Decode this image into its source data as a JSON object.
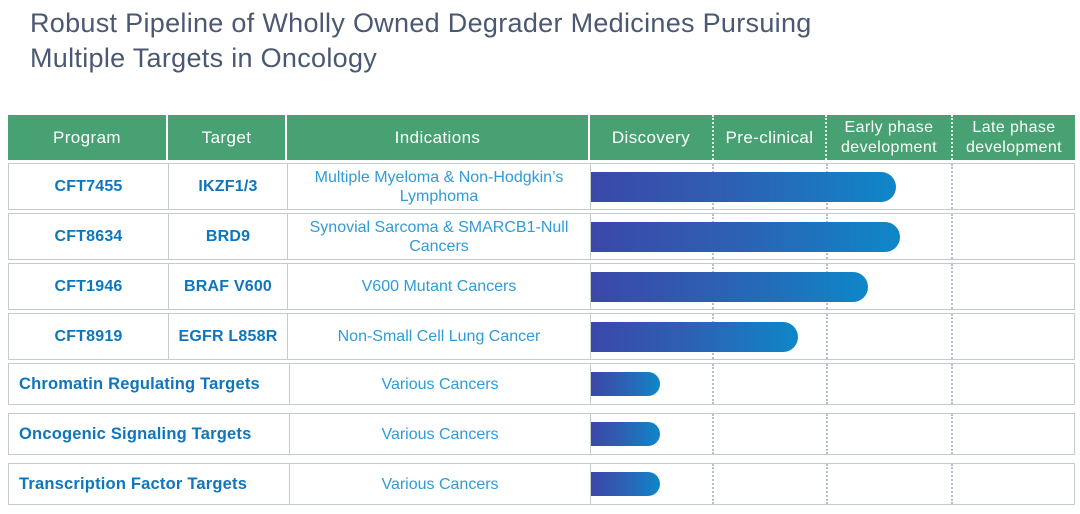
{
  "slide_title": "Robust Pipeline of Wholly Owned Degrader Medicines Pursuing Multiple Targets in Oncology",
  "table": {
    "column_headers": [
      "Program",
      "Target",
      "Indications",
      "Discovery",
      "Pre-clinical",
      "Early phase development",
      "Late phase development"
    ],
    "program_rows": [
      {
        "program": "CFT7455",
        "target": "IKZF1/3",
        "indication": "Multiple Myeloma & Non-Hodgkin’s Lymphoma",
        "bar_style": "width:305px"
      },
      {
        "program": "CFT8634",
        "target": "BRD9",
        "indication": "Synovial Sarcoma & SMARCB1-Null Cancers",
        "bar_style": "width:309px"
      },
      {
        "program": "CFT1946",
        "target": "BRAF V600",
        "indication": "V600 Mutant Cancers",
        "bar_style": "width:277px"
      },
      {
        "program": "CFT8919",
        "target": "EGFR L858R",
        "indication": "Non-Small Cell Lung Cancer",
        "bar_style": "width:207px"
      }
    ],
    "category_rows": [
      {
        "label": "Chromatin Regulating Targets",
        "indication": "Various Cancers",
        "bar_style": "width:69px"
      },
      {
        "label": "Oncogenic Signaling Targets",
        "indication": "Various Cancers",
        "bar_style": "width:69px"
      },
      {
        "label": "Transcription Factor Targets",
        "indication": "Various Cancers",
        "bar_style": "width:69px"
      }
    ]
  },
  "colors": {
    "header_green": "#47a173",
    "program_blue": "#0d76bc",
    "indication_blue": "#2f9cd8",
    "bar_gradient_start": "#3b48a9",
    "bar_gradient_end": "#0e87c8",
    "title_slate": "#4a5872",
    "grid_border": "#c3cccb",
    "dotted_divider": "#b3c0d0"
  },
  "chart_data": {
    "type": "bar",
    "orientation": "horizontal",
    "title": "Robust Pipeline of Wholly Owned Degrader Medicines Pursuing Multiple Targets in Oncology",
    "phase_axis": [
      "Discovery",
      "Pre-clinical",
      "Early phase development",
      "Late phase development"
    ],
    "xlim": [
      0,
      4
    ],
    "grid": "dotted vertical phase dividers",
    "categories": [
      "CFT7455 (IKZF1/3) — Multiple Myeloma & Non-Hodgkin’s Lymphoma",
      "CFT8634 (BRD9) — Synovial Sarcoma & SMARCB1-Null Cancers",
      "CFT1946 (BRAF V600) — V600 Mutant Cancers",
      "CFT8919 (EGFR L858R) — Non-Small Cell Lung Cancer",
      "Chromatin Regulating Targets — Various Cancers",
      "Oncogenic Signaling Targets — Various Cancers",
      "Transcription Factor Targets — Various Cancers"
    ],
    "values_phase_units": [
      2.56,
      2.6,
      2.33,
      1.75,
      0.57,
      0.57,
      0.57
    ]
  }
}
